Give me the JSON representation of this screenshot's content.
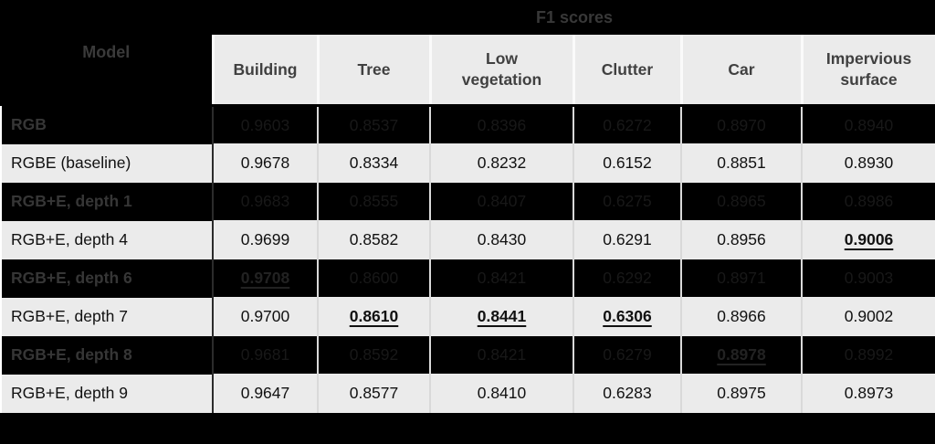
{
  "table": {
    "model_label": "Model",
    "group_label": "F1 scores",
    "columns": [
      "Building",
      "Tree",
      "Low vegetation",
      "Clutter",
      "Car",
      "Impervious surface"
    ],
    "rows": [
      {
        "model": "RGB",
        "dark": true,
        "values": [
          {
            "v": "0.9603"
          },
          {
            "v": "0.8537"
          },
          {
            "v": "0.8396"
          },
          {
            "v": "0.6272"
          },
          {
            "v": "0.8970"
          },
          {
            "v": "0.8940"
          }
        ]
      },
      {
        "model": "RGBE (baseline)",
        "dark": false,
        "values": [
          {
            "v": "0.9678"
          },
          {
            "v": "0.8334"
          },
          {
            "v": "0.8232"
          },
          {
            "v": "0.6152"
          },
          {
            "v": "0.8851"
          },
          {
            "v": "0.8930"
          }
        ]
      },
      {
        "model": "RGB+E, depth 1",
        "dark": true,
        "values": [
          {
            "v": "0.9683"
          },
          {
            "v": "0.8555"
          },
          {
            "v": "0.8407"
          },
          {
            "v": "0.6275"
          },
          {
            "v": "0.8965"
          },
          {
            "v": "0.8986"
          }
        ]
      },
      {
        "model": "RGB+E, depth 4",
        "dark": false,
        "values": [
          {
            "v": "0.9699"
          },
          {
            "v": "0.8582"
          },
          {
            "v": "0.8430"
          },
          {
            "v": "0.6291"
          },
          {
            "v": "0.8956"
          },
          {
            "v": "0.9006",
            "best": true
          }
        ]
      },
      {
        "model": "RGB+E, depth 6",
        "dark": true,
        "values": [
          {
            "v": "0.9708",
            "best": true
          },
          {
            "v": "0.8600"
          },
          {
            "v": "0.8421"
          },
          {
            "v": "0.6292"
          },
          {
            "v": "0.8971"
          },
          {
            "v": "0.9003"
          }
        ]
      },
      {
        "model": "RGB+E, depth 7",
        "dark": false,
        "values": [
          {
            "v": "0.9700"
          },
          {
            "v": "0.8610",
            "best": true
          },
          {
            "v": "0.8441",
            "best": true
          },
          {
            "v": "0.6306",
            "best": true
          },
          {
            "v": "0.8966"
          },
          {
            "v": "0.9002"
          }
        ]
      },
      {
        "model": "RGB+E, depth 8",
        "dark": true,
        "values": [
          {
            "v": "0.9681"
          },
          {
            "v": "0.8592"
          },
          {
            "v": "0.8421"
          },
          {
            "v": "0.6279"
          },
          {
            "v": "0.8978",
            "best": true
          },
          {
            "v": "0.8992"
          }
        ]
      },
      {
        "model": "RGB+E, depth 9",
        "dark": false,
        "values": [
          {
            "v": "0.9647"
          },
          {
            "v": "0.8577"
          },
          {
            "v": "0.8410"
          },
          {
            "v": "0.6283"
          },
          {
            "v": "0.8975"
          },
          {
            "v": "0.8973"
          }
        ]
      }
    ]
  },
  "chart_data": {
    "type": "table",
    "title": "F1 scores",
    "columns": [
      "Model",
      "Building",
      "Tree",
      "Low vegetation",
      "Clutter",
      "Car",
      "Impervious surface"
    ],
    "rows": [
      [
        "RGB",
        0.9603,
        0.8537,
        0.8396,
        0.6272,
        0.897,
        0.894
      ],
      [
        "RGBE (baseline)",
        0.9678,
        0.8334,
        0.8232,
        0.6152,
        0.8851,
        0.893
      ],
      [
        "RGB+E, depth 1",
        0.9683,
        0.8555,
        0.8407,
        0.6275,
        0.8965,
        0.8986
      ],
      [
        "RGB+E, depth 4",
        0.9699,
        0.8582,
        0.843,
        0.6291,
        0.8956,
        0.9006
      ],
      [
        "RGB+E, depth 6",
        0.9708,
        0.86,
        0.8421,
        0.6292,
        0.8971,
        0.9003
      ],
      [
        "RGB+E, depth 7",
        0.97,
        0.861,
        0.8441,
        0.6306,
        0.8966,
        0.9002
      ],
      [
        "RGB+E, depth 8",
        0.9681,
        0.8592,
        0.8421,
        0.6279,
        0.8978,
        0.8992
      ],
      [
        "RGB+E, depth 9",
        0.9647,
        0.8577,
        0.841,
        0.6283,
        0.8975,
        0.8973
      ]
    ],
    "best_per_column": {
      "Building": 0.9708,
      "Tree": 0.861,
      "Low vegetation": 0.8441,
      "Clutter": 0.6306,
      "Car": 0.8978,
      "Impervious surface": 0.9006
    },
    "notes": "Best value per column is bold and underlined; alternating rows are blacked out (dark text on black background)."
  },
  "colors": {
    "page_background": "#000000",
    "light_row_background": "#ebebeb",
    "light_row_text": "#111111",
    "dark_row_background": "#000000",
    "dark_row_text": "#181818",
    "header_text": "#3a3a3a",
    "subheader_text": "#404040",
    "cell_divider": "#d9d9d9"
  }
}
